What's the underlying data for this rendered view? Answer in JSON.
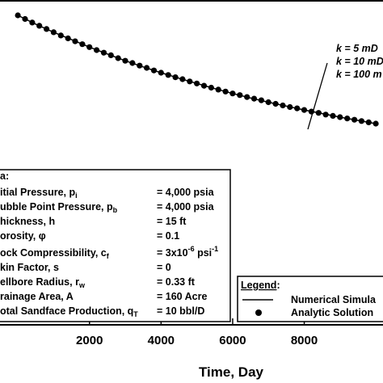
{
  "chart_data": {
    "type": "scatter",
    "xlabel": "Time, Day",
    "x_ticks": [
      "2000",
      "4000",
      "6000",
      "8000"
    ],
    "xlim": [
      -500,
      10200
    ],
    "ylim": [
      0,
      1
    ],
    "series": [
      {
        "name": "Analytic Solution",
        "marker": "filled-circle",
        "x": [
          0,
          200,
          400,
          600,
          800,
          1000,
          1200,
          1400,
          1600,
          1800,
          2000,
          2200,
          2400,
          2600,
          2800,
          3000,
          3200,
          3400,
          3600,
          3800,
          4000,
          4200,
          4400,
          4600,
          4800,
          5000,
          5200,
          5400,
          5600,
          5800,
          6000,
          6200,
          6400,
          6600,
          6800,
          7000,
          7200,
          7400,
          7600,
          7800,
          8000,
          8200,
          8400,
          8600,
          8800,
          9000,
          9200,
          9400,
          9600,
          9800,
          10000
        ],
        "y": [
          0.955,
          0.944,
          0.933,
          0.923,
          0.913,
          0.903,
          0.893,
          0.884,
          0.875,
          0.866,
          0.857,
          0.848,
          0.84,
          0.832,
          0.823,
          0.815,
          0.808,
          0.8,
          0.793,
          0.785,
          0.778,
          0.771,
          0.764,
          0.758,
          0.751,
          0.745,
          0.738,
          0.732,
          0.726,
          0.72,
          0.714,
          0.709,
          0.703,
          0.698,
          0.693,
          0.687,
          0.682,
          0.677,
          0.672,
          0.668,
          0.663,
          0.658,
          0.654,
          0.649,
          0.645,
          0.641,
          0.637,
          0.633,
          0.629,
          0.625,
          0.621
        ]
      },
      {
        "name": "Numerical Simula",
        "marker": "solid-line",
        "x": [
          0,
          500,
          1000,
          1500,
          2000,
          2500,
          3000,
          3500,
          4000,
          4500,
          5000,
          5500,
          6000,
          6500,
          7000,
          7500,
          8000,
          8500,
          9000,
          9500,
          10000
        ],
        "y": [
          0.955,
          0.928,
          0.903,
          0.88,
          0.857,
          0.836,
          0.815,
          0.796,
          0.778,
          0.761,
          0.745,
          0.729,
          0.714,
          0.7,
          0.687,
          0.675,
          0.663,
          0.652,
          0.641,
          0.631,
          0.621
        ]
      }
    ],
    "annotations": {
      "k_labels": [
        "k = 5 mD",
        "k = 10 mD",
        "k = 100 m"
      ]
    },
    "data_box": {
      "title": "a:",
      "rows": [
        {
          "name": "itial Pressure, p",
          "sub": "i",
          "value": "= 4,000 psia"
        },
        {
          "name": "ubble Point Pressure, p",
          "sub": "b",
          "value": "= 4,000 psia"
        },
        {
          "name": "hickness, h",
          "sub": "",
          "value": "= 15 ft"
        },
        {
          "name": "orosity, φ",
          "sub": "",
          "value": "= 0.1"
        },
        {
          "name": "ock Compressibility, c",
          "sub": "f",
          "value": "= 3x10",
          "sup": "-6",
          "value_tail": " psi",
          "sup2": "-1"
        },
        {
          "name": "kin Factor, s",
          "sub": "",
          "value": "= 0"
        },
        {
          "name": "ellbore Radius, r",
          "sub": "w",
          "value": "= 0.33 ft"
        },
        {
          "name": "rainage Area, A",
          "sub": "",
          "value": "= 160 Acre"
        },
        {
          "name": "otal Sandface Production, q",
          "sub": "T",
          "value": "= 10 bbl/D"
        }
      ]
    },
    "legend": {
      "title": "Legend",
      "colon": ":",
      "entries": [
        "Numerical Simula",
        "Analytic Solution"
      ]
    }
  }
}
